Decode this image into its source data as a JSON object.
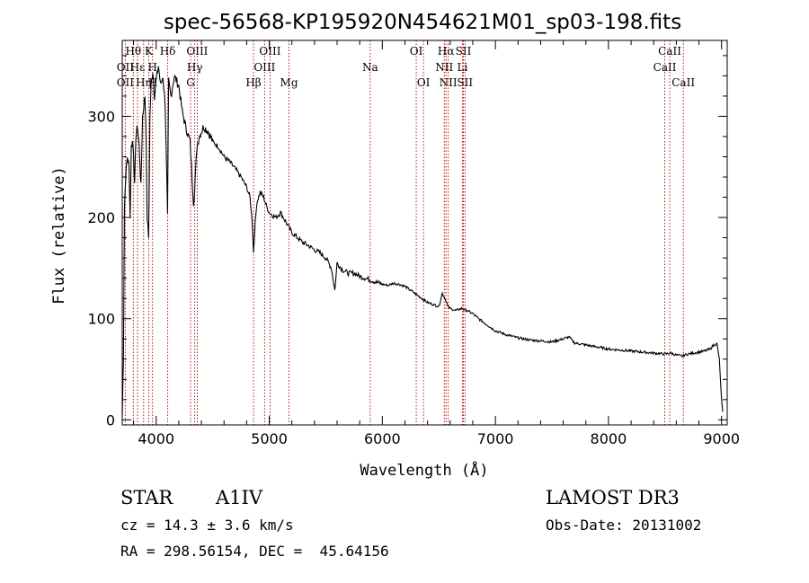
{
  "chart_data": {
    "type": "line",
    "title": "spec-56568-KP195920N454621M01_sp03-198.fits",
    "xlabel": "Wavelength (Å)",
    "ylabel": "Flux (relative)",
    "xlim": [
      3700,
      9050
    ],
    "ylim": [
      -5,
      375
    ],
    "x_ticks": [
      4000,
      5000,
      6000,
      7000,
      8000,
      9000
    ],
    "x_tick_labels": [
      "4000",
      "5000",
      "6000",
      "7000",
      "8000",
      "9000"
    ],
    "y_ticks": [
      0,
      100,
      200,
      300
    ],
    "y_tick_labels": [
      "0",
      "100",
      "200",
      "300"
    ],
    "series": [
      {
        "name": "spectrum",
        "x": [
          3700,
          3710,
          3720,
          3730,
          3745,
          3760,
          3770,
          3780,
          3790,
          3800,
          3810,
          3820,
          3835,
          3850,
          3865,
          3880,
          3890,
          3900,
          3910,
          3920,
          3933,
          3945,
          3955,
          3970,
          3985,
          4000,
          4020,
          4040,
          4060,
          4080,
          4101,
          4110,
          4130,
          4160,
          4200,
          4230,
          4260,
          4300,
          4330,
          4340,
          4360,
          4380,
          4420,
          4460,
          4500,
          4550,
          4600,
          4650,
          4700,
          4750,
          4800,
          4830,
          4850,
          4861,
          4870,
          4890,
          4920,
          4950,
          4980,
          5000,
          5030,
          5060,
          5100,
          5150,
          5200,
          5250,
          5300,
          5350,
          5400,
          5450,
          5500,
          5550,
          5580,
          5600,
          5650,
          5700,
          5750,
          5800,
          5850,
          5900,
          5950,
          6000,
          6050,
          6100,
          6150,
          6200,
          6250,
          6300,
          6350,
          6400,
          6450,
          6500,
          6530,
          6563,
          6580,
          6600,
          6650,
          6700,
          6750,
          6800,
          6850,
          6900,
          6950,
          7000,
          7100,
          7200,
          7300,
          7400,
          7500,
          7600,
          7650,
          7700,
          7800,
          7900,
          8000,
          8100,
          8200,
          8300,
          8400,
          8500,
          8550,
          8600,
          8650,
          8700,
          8750,
          8800,
          8850,
          8900,
          8930,
          8960,
          8980,
          9000,
          9010
        ],
        "values": [
          2,
          60,
          210,
          240,
          260,
          250,
          200,
          270,
          275,
          265,
          230,
          280,
          290,
          270,
          230,
          300,
          310,
          320,
          290,
          200,
          180,
          300,
          330,
          345,
          320,
          335,
          350,
          330,
          340,
          310,
          200,
          335,
          320,
          340,
          330,
          305,
          290,
          275,
          215,
          225,
          270,
          280,
          290,
          285,
          275,
          270,
          260,
          255,
          248,
          240,
          230,
          220,
          195,
          165,
          185,
          215,
          225,
          220,
          210,
          205,
          202,
          200,
          205,
          195,
          185,
          180,
          175,
          172,
          168,
          165,
          160,
          150,
          128,
          155,
          148,
          145,
          145,
          142,
          140,
          138,
          136,
          134,
          133,
          135,
          134,
          132,
          128,
          124,
          120,
          116,
          114,
          112,
          125,
          118,
          112,
          110,
          108,
          110,
          108,
          105,
          100,
          96,
          92,
          88,
          84,
          81,
          79,
          78,
          77,
          80,
          82,
          76,
          74,
          72,
          70,
          69,
          68,
          67,
          66,
          65,
          66,
          64,
          63,
          65,
          66,
          67,
          68,
          70,
          74,
          75,
          60,
          20,
          8
        ]
      }
    ],
    "spectral_lines": [
      {
        "label": "Hθ",
        "x": 3798,
        "row": 1
      },
      {
        "label": "OII",
        "x": 3727,
        "row": 2
      },
      {
        "label": "OII",
        "x": 3727,
        "row": 3
      },
      {
        "label": "Hε",
        "x": 3835,
        "row": 2
      },
      {
        "label": "Hη",
        "x": 3889,
        "row": 3
      },
      {
        "label": "K",
        "x": 3934,
        "row": 1
      },
      {
        "label": "H",
        "x": 3968,
        "row": 2
      },
      {
        "label": "Hδ",
        "x": 4102,
        "row": 1
      },
      {
        "label": "H",
        "x": 3970,
        "row": 3
      },
      {
        "label": "OIII",
        "x": 4363,
        "row": 1
      },
      {
        "label": "Hγ",
        "x": 4341,
        "row": 2
      },
      {
        "label": "G",
        "x": 4305,
        "row": 3
      },
      {
        "label": "OIII",
        "x": 5007,
        "row": 1
      },
      {
        "label": "OIII",
        "x": 4959,
        "row": 2
      },
      {
        "label": "Hβ",
        "x": 4861,
        "row": 3
      },
      {
        "label": "Mg",
        "x": 5175,
        "row": 3
      },
      {
        "label": "Na",
        "x": 5893,
        "row": 2
      },
      {
        "label": "OI",
        "x": 6300,
        "row": 1
      },
      {
        "label": "OI",
        "x": 6364,
        "row": 3
      },
      {
        "label": "Hα",
        "x": 6563,
        "row": 1
      },
      {
        "label": "SII",
        "x": 6717,
        "row": 1
      },
      {
        "label": "NII",
        "x": 6548,
        "row": 2
      },
      {
        "label": "Li",
        "x": 6708,
        "row": 2
      },
      {
        "label": "NII",
        "x": 6583,
        "row": 3
      },
      {
        "label": "SII",
        "x": 6731,
        "row": 3
      },
      {
        "label": "CaII",
        "x": 8542,
        "row": 1
      },
      {
        "label": "CaII",
        "x": 8498,
        "row": 2
      },
      {
        "label": "CaII",
        "x": 8662,
        "row": 3
      }
    ],
    "line_marker_x": [
      3727,
      3798,
      3835,
      3889,
      3934,
      3968,
      4102,
      4305,
      4341,
      4363,
      4861,
      4959,
      5007,
      5175,
      5893,
      6300,
      6364,
      6548,
      6563,
      6583,
      6708,
      6717,
      6731,
      8498,
      8542,
      8662
    ]
  },
  "info": {
    "object_class": "STAR",
    "subclass": "A1IV",
    "survey": "LAMOST DR3",
    "cz": "cz = 14.3 ± 3.6 km/s",
    "obs_date": "Obs-Date: 20131002",
    "coords": "RA = 298.56154, DEC =  45.64156"
  }
}
